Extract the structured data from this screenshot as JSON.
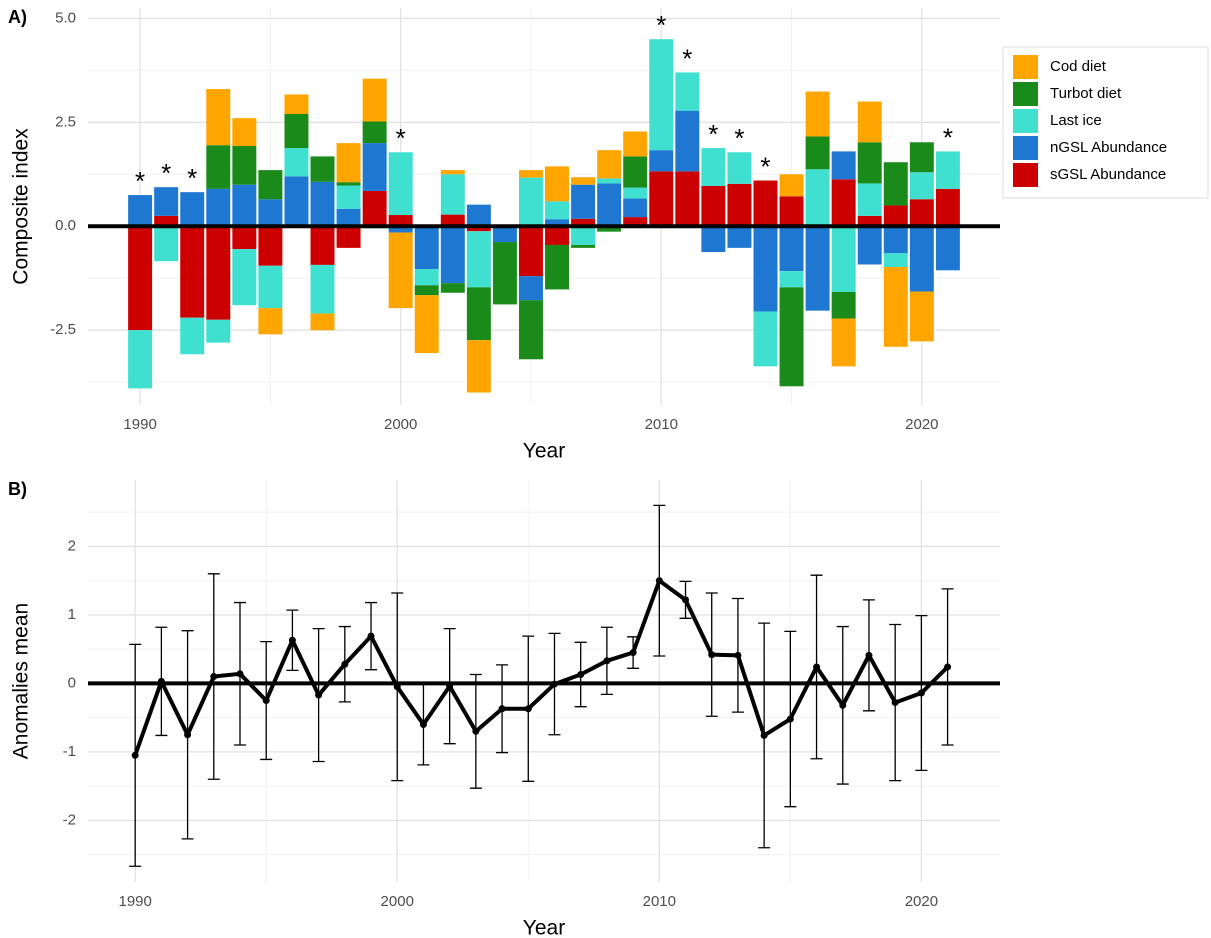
{
  "chart_data": [
    {
      "type": "bar",
      "stacked": true,
      "panel_label": "A)",
      "xlabel": "Year",
      "ylabel": "Composite index",
      "x": [
        1990,
        1991,
        1992,
        1993,
        1994,
        1995,
        1996,
        1997,
        1998,
        1999,
        2000,
        2001,
        2002,
        2003,
        2004,
        2005,
        2006,
        2007,
        2008,
        2009,
        2010,
        2011,
        2012,
        2013,
        2014,
        2015,
        2016,
        2017,
        2018,
        2019,
        2020,
        2021
      ],
      "series": [
        {
          "name": "Cod diet",
          "color": "#FFA500",
          "values": [
            0,
            0,
            0,
            1.35,
            0.67,
            -0.63,
            0.47,
            -0.4,
            0.94,
            1.03,
            -1.82,
            -1.39,
            0.1,
            -1.26,
            0,
            0.18,
            0.84,
            0.18,
            0.68,
            0.6,
            0,
            0,
            0,
            0,
            0,
            0.53,
            1.08,
            -1.15,
            0.98,
            -1.92,
            -1.2,
            0
          ]
        },
        {
          "name": "Turbot diet",
          "color": "#1A8A1A",
          "values": [
            0,
            0,
            0,
            1.05,
            0.93,
            0.7,
            0.82,
            0.61,
            0.08,
            0.52,
            0,
            -0.24,
            -0.23,
            -1.27,
            -1.5,
            -1.42,
            -1.07,
            -0.07,
            -0.13,
            0.75,
            0,
            0,
            0,
            0,
            0,
            -2.38,
            0.79,
            -0.64,
            0.99,
            1.04,
            0.72,
            0
          ]
        },
        {
          "name": "Last ice",
          "color": "#40E0D0",
          "values": [
            -1.4,
            -0.84,
            -0.88,
            -0.55,
            -1.35,
            -1.02,
            0.68,
            -1.17,
            0.56,
            -0.05,
            1.51,
            -0.39,
            0.97,
            -1.35,
            0,
            1.17,
            0.43,
            -0.45,
            0.12,
            0.26,
            2.67,
            0.92,
            0.91,
            0.76,
            -1.32,
            -0.39,
            1.37,
            -1.58,
            0.78,
            -0.33,
            0.65,
            0.9
          ]
        },
        {
          "name": "nGSL Abundance",
          "color": "#1E78D2",
          "values": [
            0.75,
            0.69,
            0.82,
            0.9,
            1.0,
            0.65,
            1.2,
            1.07,
            0.42,
            1.15,
            -0.15,
            -1.03,
            -1.37,
            0.52,
            -0.38,
            -0.58,
            0.17,
            0.82,
            1.03,
            0.45,
            0.51,
            1.46,
            -0.62,
            -0.52,
            -2.05,
            -1.08,
            -2.03,
            0.67,
            -0.92,
            -0.65,
            -1.57,
            -1.06
          ]
        },
        {
          "name": "sGSL Abundance",
          "color": "#CD0000",
          "values": [
            -2.5,
            0.25,
            -2.2,
            -2.25,
            -0.55,
            -0.95,
            0,
            -0.93,
            -0.52,
            0.85,
            0.27,
            0,
            0.28,
            -0.12,
            0,
            -1.2,
            -0.45,
            0.18,
            0,
            0.22,
            1.32,
            1.32,
            0.97,
            1.02,
            1.1,
            0.72,
            0,
            1.13,
            0.25,
            0.5,
            0.65,
            0.9
          ]
        }
      ],
      "annotations": [
        {
          "x": 1990,
          "text": "*"
        },
        {
          "x": 1991,
          "text": "*"
        },
        {
          "x": 1992,
          "text": "*"
        },
        {
          "x": 2000,
          "text": "*"
        },
        {
          "x": 2010,
          "text": "*"
        },
        {
          "x": 2011,
          "text": "*"
        },
        {
          "x": 2012,
          "text": "*"
        },
        {
          "x": 2013,
          "text": "*"
        },
        {
          "x": 2014,
          "text": "*"
        },
        {
          "x": 2021,
          "text": "*"
        }
      ],
      "xlim": [
        1988,
        2023
      ],
      "xticks": [
        1990,
        2000,
        2010,
        2020
      ],
      "ylim": [
        -4.3,
        5.25
      ],
      "yticks": [
        {
          "value": -2.5,
          "label": "-2.5"
        },
        {
          "value": 0,
          "label": "0.0"
        },
        2.5,
        {
          "value": 5,
          "label": "5.0"
        }
      ],
      "grid": true,
      "legend": "right"
    },
    {
      "type": "line",
      "panel_label": "B)",
      "xlabel": "Year",
      "ylabel": "Anomalies mean",
      "color": "#000000",
      "x": [
        1990,
        1991,
        1992,
        1993,
        1994,
        1995,
        1996,
        1997,
        1998,
        1999,
        2000,
        2001,
        2002,
        2003,
        2004,
        2005,
        2006,
        2007,
        2008,
        2009,
        2010,
        2011,
        2012,
        2013,
        2014,
        2015,
        2016,
        2017,
        2018,
        2019,
        2020,
        2021
      ],
      "values": [
        -1.05,
        0.03,
        -0.75,
        0.1,
        0.14,
        -0.25,
        0.63,
        -0.17,
        0.28,
        0.69,
        -0.05,
        -0.6,
        -0.04,
        -0.7,
        -0.37,
        -0.37,
        -0.01,
        0.13,
        0.33,
        0.45,
        1.5,
        1.22,
        0.42,
        0.41,
        -0.76,
        -0.52,
        0.24,
        -0.32,
        0.41,
        -0.28,
        -0.14,
        0.24
      ],
      "errors": [
        1.62,
        0.79,
        1.52,
        1.5,
        1.04,
        0.86,
        0.44,
        0.97,
        0.55,
        0.49,
        1.37,
        0.59,
        0.84,
        0.83,
        0.64,
        1.06,
        0.74,
        0.47,
        0.49,
        0.23,
        1.1,
        0.27,
        0.9,
        0.83,
        1.64,
        1.28,
        1.34,
        1.15,
        0.81,
        1.14,
        1.13,
        1.14
      ],
      "xlim": [
        1988.2,
        2023
      ],
      "xticks": [
        1990,
        2000,
        2010,
        2020
      ],
      "ylim": [
        -2.9,
        2.97
      ],
      "yticks": [
        -2,
        -1,
        0,
        1,
        2
      ],
      "grid": true
    }
  ]
}
